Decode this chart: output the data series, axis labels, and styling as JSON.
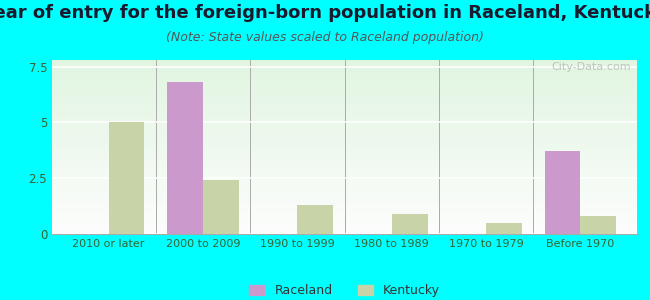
{
  "title": "Year of entry for the foreign-born population in Raceland, Kentucky",
  "subtitle": "(Note: State values scaled to Raceland population)",
  "categories": [
    "2010 or later",
    "2000 to 2009",
    "1990 to 1999",
    "1980 to 1989",
    "1970 to 1979",
    "Before 1970"
  ],
  "raceland_values": [
    0,
    6.8,
    0,
    0,
    0,
    3.7
  ],
  "kentucky_values": [
    5.0,
    2.4,
    1.3,
    0.9,
    0.5,
    0.8
  ],
  "raceland_color": "#cc99cc",
  "kentucky_color": "#c8d4a8",
  "background_color": "#00ffff",
  "ylim": [
    0,
    7.8
  ],
  "yticks": [
    0,
    2.5,
    5,
    7.5
  ],
  "bar_width": 0.38,
  "title_fontsize": 13,
  "subtitle_fontsize": 9,
  "watermark": "City-Data.com"
}
